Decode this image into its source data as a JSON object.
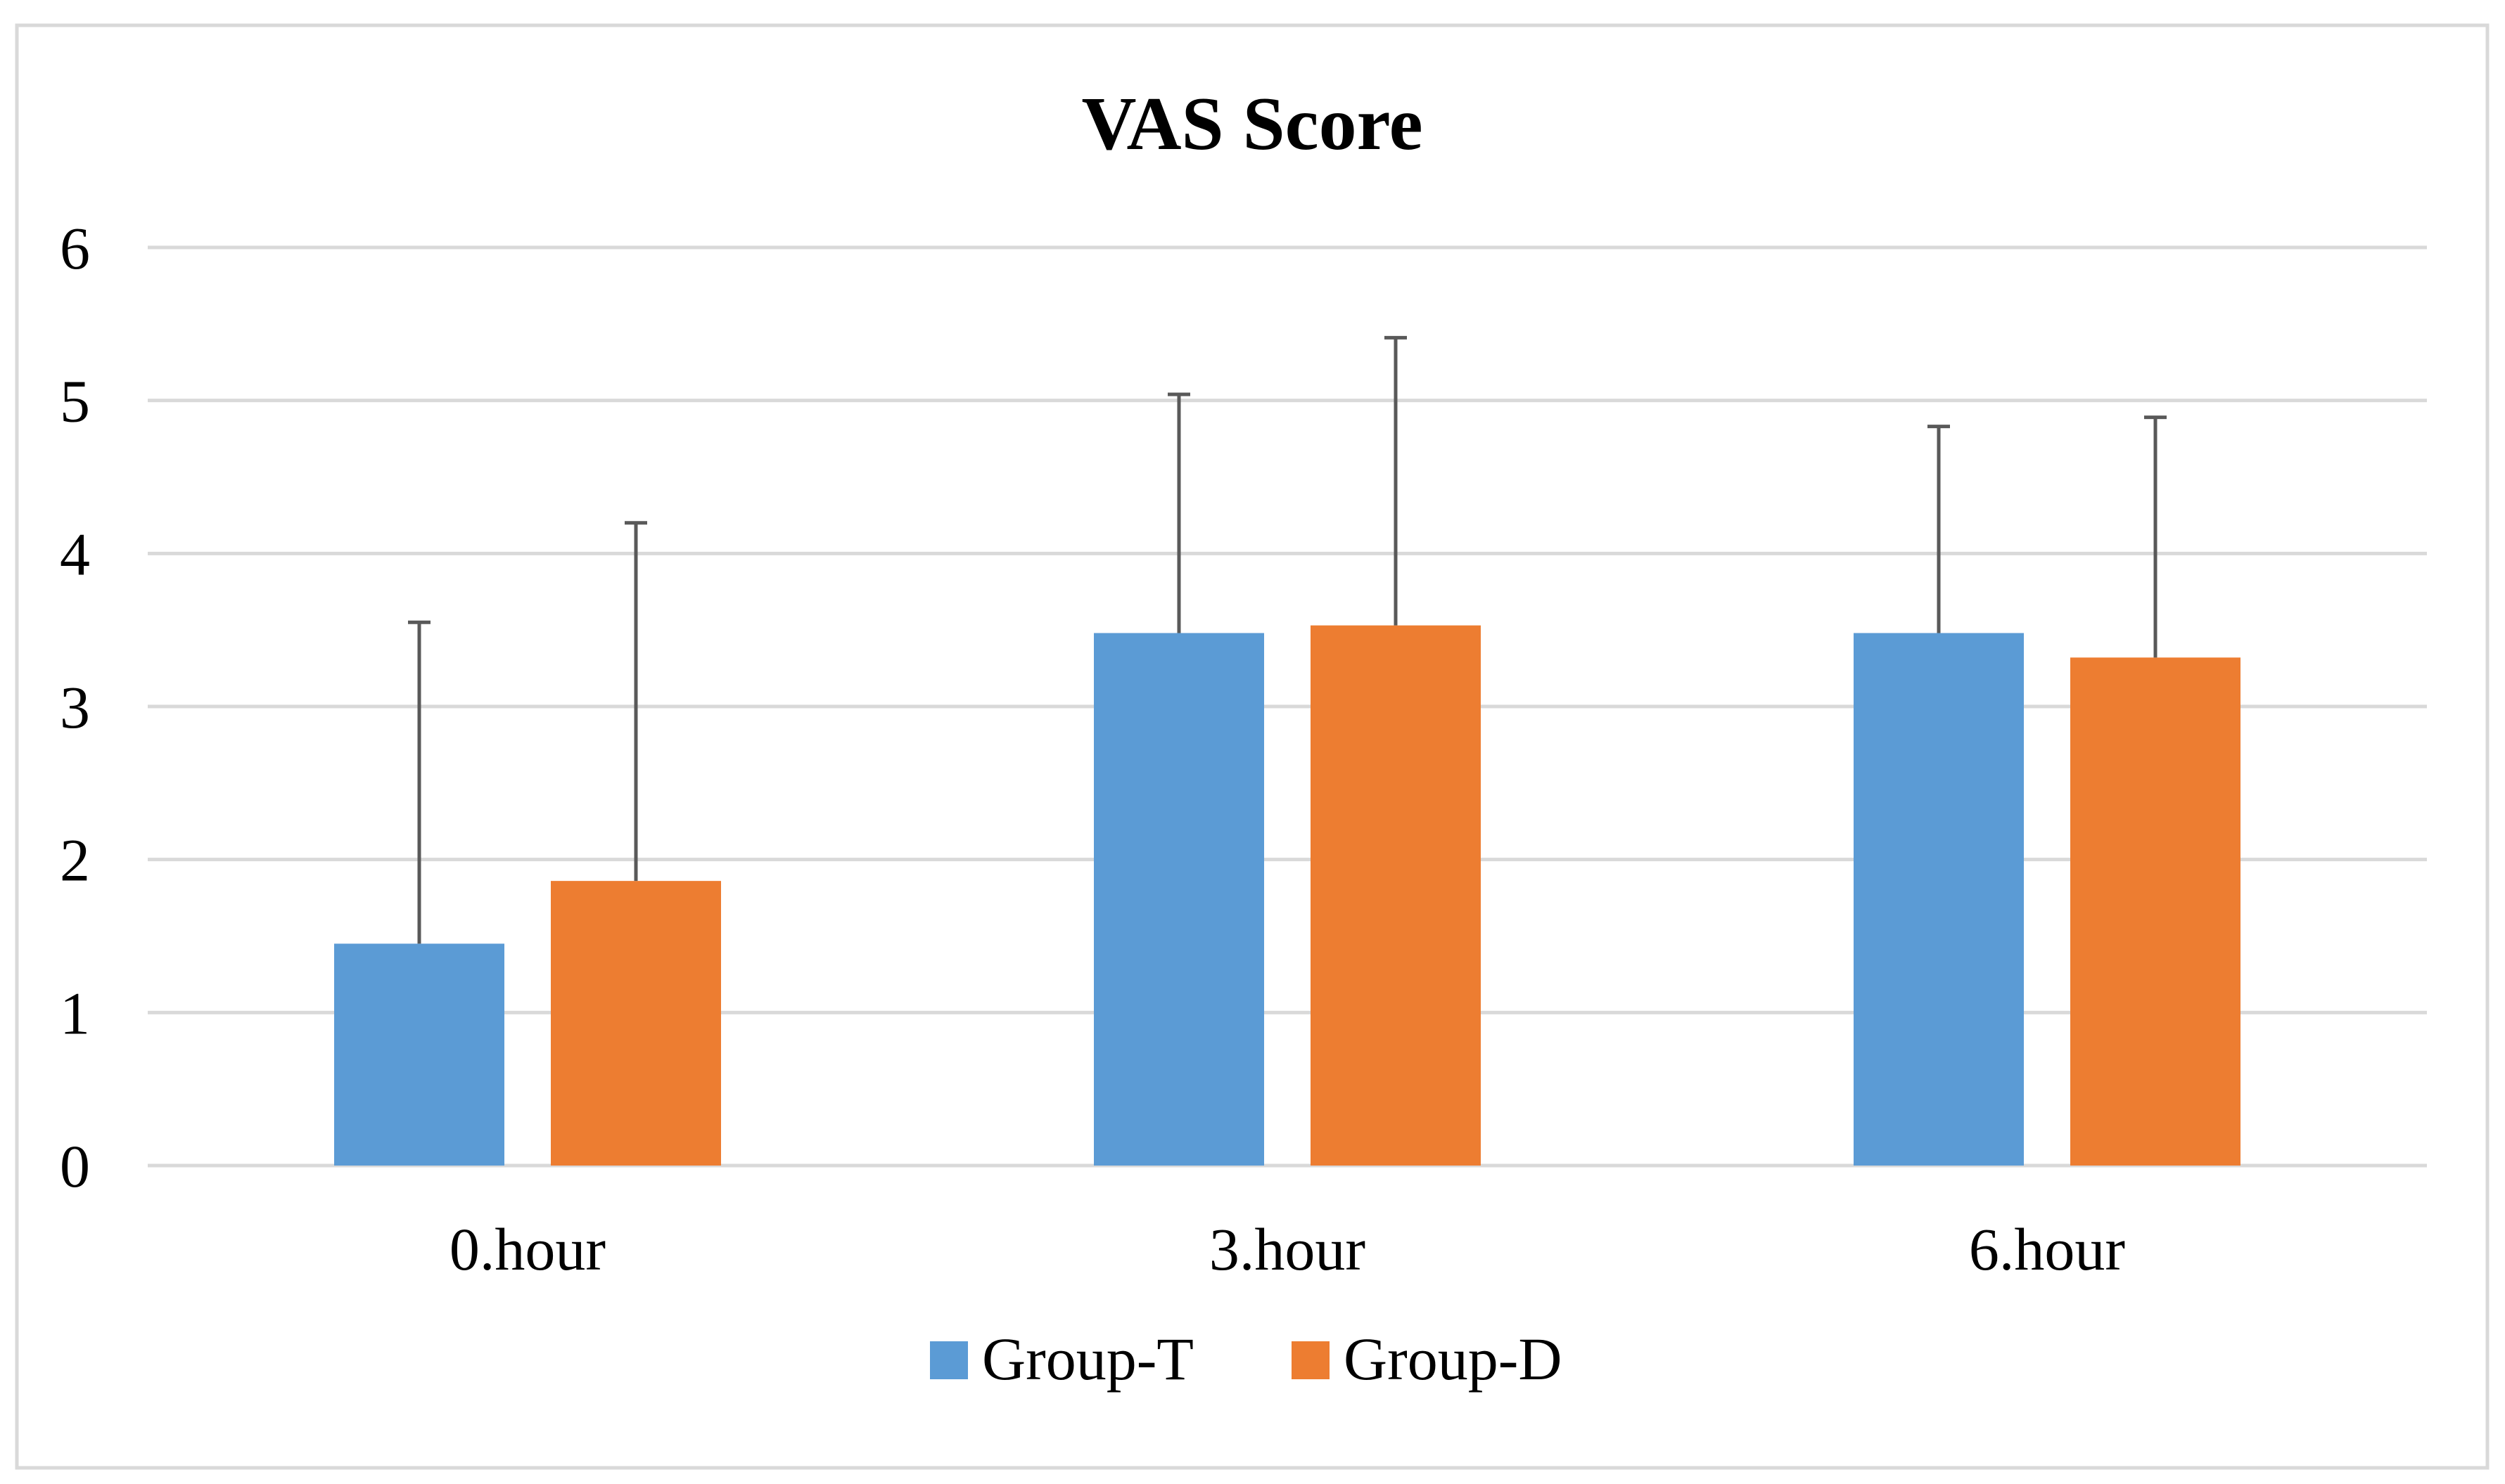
{
  "chart_data": {
    "type": "bar",
    "title": "VAS Score",
    "xlabel": "",
    "ylabel": "",
    "categories": [
      "0.hour",
      "3.hour",
      "6.hour"
    ],
    "ylim": [
      0,
      6
    ],
    "yticks": [
      0,
      1,
      2,
      3,
      4,
      5,
      6
    ],
    "ytick_labels": [
      "0",
      "1",
      "2",
      "3",
      "4",
      "5",
      "6"
    ],
    "grid": true,
    "legend_position": "bottom-center",
    "series": [
      {
        "name": "Group-T",
        "color": "#5B9BD5",
        "values": [
          1.45,
          3.48,
          3.48
        ],
        "error_plus": [
          2.1,
          1.56,
          1.35
        ]
      },
      {
        "name": "Group-D",
        "color": "#ED7D31",
        "values": [
          1.86,
          3.53,
          3.32
        ],
        "error_plus": [
          2.34,
          1.88,
          1.57
        ]
      }
    ],
    "error_bar_color": "#595959",
    "gridline_color": "#D9D9D9",
    "frame_color": "#D9D9D9"
  }
}
